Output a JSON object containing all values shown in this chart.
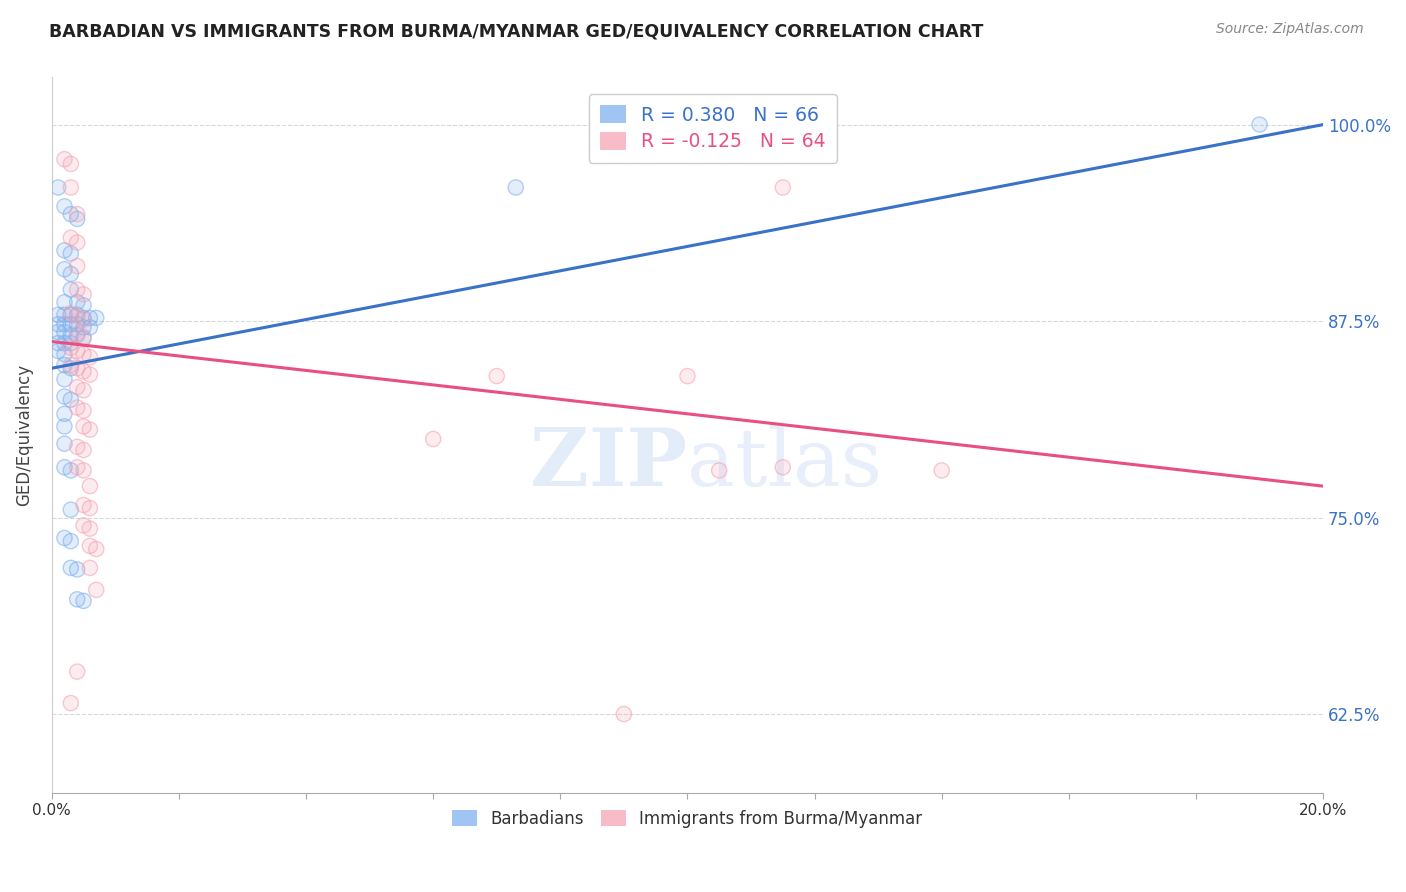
{
  "title": "BARBADIAN VS IMMIGRANTS FROM BURMA/MYANMAR GED/EQUIVALENCY CORRELATION CHART",
  "source": "Source: ZipAtlas.com",
  "ylabel": "GED/Equivalency",
  "legend_entries": [
    {
      "label_r": "R = ",
      "label_r_val": "0.380",
      "label_n": "   N = ",
      "label_n_val": "66",
      "color": "#7aadee"
    },
    {
      "label_r": "R = ",
      "label_r_val": "-0.125",
      "label_n": "   N = ",
      "label_n_val": "64",
      "color": "#f4a0b0"
    }
  ],
  "legend_labels_bottom": [
    "Barbadians",
    "Immigrants from Burma/Myanmar"
  ],
  "blue_scatter": [
    [
      0.001,
      0.96
    ],
    [
      0.002,
      0.948
    ],
    [
      0.003,
      0.943
    ],
    [
      0.004,
      0.94
    ],
    [
      0.002,
      0.92
    ],
    [
      0.003,
      0.918
    ],
    [
      0.002,
      0.908
    ],
    [
      0.003,
      0.905
    ],
    [
      0.003,
      0.895
    ],
    [
      0.002,
      0.887
    ],
    [
      0.004,
      0.887
    ],
    [
      0.005,
      0.885
    ],
    [
      0.001,
      0.879
    ],
    [
      0.002,
      0.879
    ],
    [
      0.003,
      0.879
    ],
    [
      0.004,
      0.879
    ],
    [
      0.005,
      0.877
    ],
    [
      0.006,
      0.877
    ],
    [
      0.007,
      0.877
    ],
    [
      0.001,
      0.873
    ],
    [
      0.002,
      0.873
    ],
    [
      0.003,
      0.873
    ],
    [
      0.004,
      0.873
    ],
    [
      0.005,
      0.871
    ],
    [
      0.006,
      0.871
    ],
    [
      0.001,
      0.868
    ],
    [
      0.002,
      0.868
    ],
    [
      0.003,
      0.866
    ],
    [
      0.004,
      0.866
    ],
    [
      0.005,
      0.864
    ],
    [
      0.001,
      0.861
    ],
    [
      0.002,
      0.861
    ],
    [
      0.003,
      0.861
    ],
    [
      0.001,
      0.856
    ],
    [
      0.002,
      0.854
    ],
    [
      0.002,
      0.847
    ],
    [
      0.003,
      0.845
    ],
    [
      0.002,
      0.838
    ],
    [
      0.002,
      0.827
    ],
    [
      0.003,
      0.825
    ],
    [
      0.002,
      0.816
    ],
    [
      0.002,
      0.808
    ],
    [
      0.002,
      0.797
    ],
    [
      0.002,
      0.782
    ],
    [
      0.003,
      0.78
    ],
    [
      0.003,
      0.755
    ],
    [
      0.002,
      0.737
    ],
    [
      0.003,
      0.735
    ],
    [
      0.003,
      0.718
    ],
    [
      0.004,
      0.717
    ],
    [
      0.004,
      0.698
    ],
    [
      0.005,
      0.697
    ],
    [
      0.19,
      1.0
    ],
    [
      0.073,
      0.96
    ]
  ],
  "pink_scatter": [
    [
      0.002,
      0.978
    ],
    [
      0.003,
      0.975
    ],
    [
      0.003,
      0.96
    ],
    [
      0.004,
      0.943
    ],
    [
      0.003,
      0.928
    ],
    [
      0.004,
      0.925
    ],
    [
      0.004,
      0.91
    ],
    [
      0.004,
      0.895
    ],
    [
      0.005,
      0.892
    ],
    [
      0.003,
      0.88
    ],
    [
      0.004,
      0.878
    ],
    [
      0.005,
      0.876
    ],
    [
      0.004,
      0.867
    ],
    [
      0.005,
      0.865
    ],
    [
      0.003,
      0.858
    ],
    [
      0.004,
      0.856
    ],
    [
      0.005,
      0.854
    ],
    [
      0.006,
      0.852
    ],
    [
      0.003,
      0.847
    ],
    [
      0.004,
      0.845
    ],
    [
      0.005,
      0.843
    ],
    [
      0.006,
      0.841
    ],
    [
      0.004,
      0.833
    ],
    [
      0.005,
      0.831
    ],
    [
      0.004,
      0.82
    ],
    [
      0.005,
      0.818
    ],
    [
      0.005,
      0.808
    ],
    [
      0.006,
      0.806
    ],
    [
      0.004,
      0.795
    ],
    [
      0.005,
      0.793
    ],
    [
      0.004,
      0.782
    ],
    [
      0.005,
      0.78
    ],
    [
      0.006,
      0.77
    ],
    [
      0.005,
      0.758
    ],
    [
      0.006,
      0.756
    ],
    [
      0.005,
      0.745
    ],
    [
      0.006,
      0.743
    ],
    [
      0.006,
      0.732
    ],
    [
      0.007,
      0.73
    ],
    [
      0.006,
      0.718
    ],
    [
      0.007,
      0.704
    ],
    [
      0.004,
      0.652
    ],
    [
      0.003,
      0.632
    ],
    [
      0.1,
      0.84
    ],
    [
      0.105,
      0.78
    ],
    [
      0.115,
      0.782
    ],
    [
      0.115,
      0.96
    ],
    [
      0.14,
      0.78
    ],
    [
      0.09,
      0.625
    ],
    [
      0.06,
      0.8
    ],
    [
      0.07,
      0.84
    ]
  ],
  "blue_line_x0": 0.0,
  "blue_line_x1": 0.2,
  "blue_line_y0": 0.845,
  "blue_line_y1": 1.0,
  "pink_line_x0": 0.0,
  "pink_line_x1": 0.2,
  "pink_line_y0": 0.862,
  "pink_line_y1": 0.77,
  "xlim": [
    0.0,
    0.2
  ],
  "ylim": [
    0.575,
    1.03
  ],
  "ytick_vals": [
    0.625,
    0.75,
    0.875,
    1.0
  ],
  "ytick_labels": [
    "62.5%",
    "75.0%",
    "87.5%",
    "100.0%"
  ],
  "blue_color": "#7aadee",
  "pink_color": "#f4a0b0",
  "blue_line_color": "#3a72c8",
  "pink_line_color": "#e85080",
  "background_color": "#ffffff",
  "grid_color": "#d8d8d8",
  "title_fontsize": 12.5,
  "source_fontsize": 10
}
